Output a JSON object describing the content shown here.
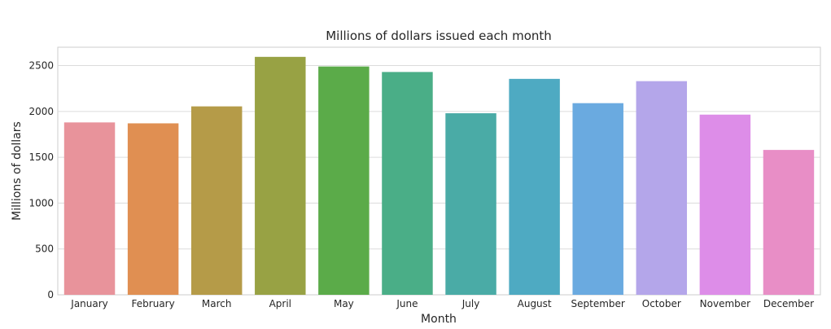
{
  "chart_data": {
    "type": "bar",
    "title": "Millions of dollars issued each month",
    "xlabel": "Month",
    "ylabel": "Millions of dollars",
    "categories": [
      "January",
      "February",
      "March",
      "April",
      "May",
      "June",
      "July",
      "August",
      "September",
      "October",
      "November",
      "December"
    ],
    "values": [
      1880,
      1870,
      2055,
      2595,
      2490,
      2430,
      1980,
      2355,
      2090,
      2330,
      1965,
      1580
    ],
    "colors": [
      "#e8939b",
      "#e08f52",
      "#b59b48",
      "#98a244",
      "#5bab49",
      "#4aae87",
      "#4aaba6",
      "#4eaac2",
      "#6aaae0",
      "#b4a6ea",
      "#dd8de8",
      "#e88ec6"
    ],
    "ylim": [
      0,
      2700
    ],
    "yticks": [
      0,
      500,
      1000,
      1500,
      2000,
      2500
    ],
    "grid": true,
    "legend": "none"
  }
}
